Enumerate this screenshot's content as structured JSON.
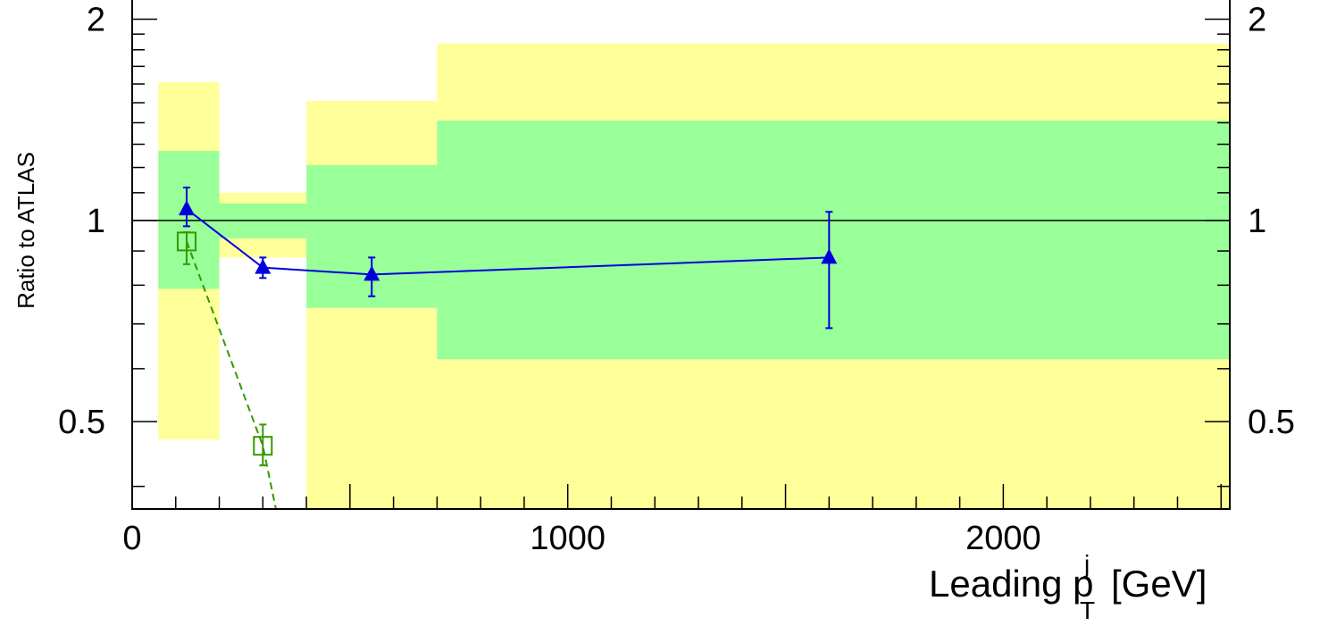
{
  "chart_data": {
    "type": "scatter",
    "title": "",
    "xlabel": "Leading p",
    "xlabel_sup": "j",
    "xlabel_sub": "T",
    "xlabel_unit": "[GeV]",
    "ylabel": "Ratio to ATLAS",
    "xlim": [
      0,
      2520
    ],
    "ylim": [
      0.37,
      2.15
    ],
    "y_scale": "log",
    "grid": false,
    "reference_line": 1,
    "x_ticks": [
      {
        "value": 0,
        "label": "0"
      },
      {
        "value": 1000,
        "label": "1000"
      },
      {
        "value": 2000,
        "label": "2000"
      }
    ],
    "y_ticks": [
      {
        "value": 0.5,
        "label": "0.5"
      },
      {
        "value": 1,
        "label": "1"
      },
      {
        "value": 2,
        "label": "2"
      }
    ],
    "bands": [
      {
        "x": [
          60,
          200
        ],
        "outer": [
          0.47,
          1.61
        ],
        "inner": [
          0.79,
          1.27
        ]
      },
      {
        "x": [
          200,
          400
        ],
        "outer": [
          0.88,
          1.1
        ],
        "inner": [
          0.94,
          1.06
        ]
      },
      {
        "x": [
          400,
          700
        ],
        "outer": [
          0.37,
          1.51
        ],
        "inner": [
          0.74,
          1.21
        ]
      },
      {
        "x": [
          700,
          2520
        ],
        "outer": [
          0.37,
          1.84
        ],
        "inner": [
          0.62,
          1.41
        ]
      }
    ],
    "band_colors": {
      "outer": "#ffff99",
      "inner": "#99ff99"
    },
    "series": [
      {
        "color": "#0000dd",
        "marker": "triangle",
        "line": "solid",
        "points": [
          {
            "x": 125,
            "y": 1.04,
            "err_lo": 0.98,
            "err_hi": 1.12
          },
          {
            "x": 300,
            "y": 0.85,
            "err_lo": 0.82,
            "err_hi": 0.88
          },
          {
            "x": 550,
            "y": 0.83,
            "err_lo": 0.77,
            "err_hi": 0.88
          },
          {
            "x": 1600,
            "y": 0.88,
            "err_lo": 0.69,
            "err_hi": 1.03
          }
        ]
      },
      {
        "color": "#339900",
        "marker": "open-square",
        "line": "dashed",
        "points": [
          {
            "x": 125,
            "y": 0.93,
            "err_lo": 0.86,
            "err_hi": 0.96
          },
          {
            "x": 300,
            "y": 0.46,
            "err_lo": 0.43,
            "err_hi": 0.495
          }
        ],
        "line_extends_to": {
          "x": 330,
          "y": 0.37
        }
      }
    ]
  }
}
